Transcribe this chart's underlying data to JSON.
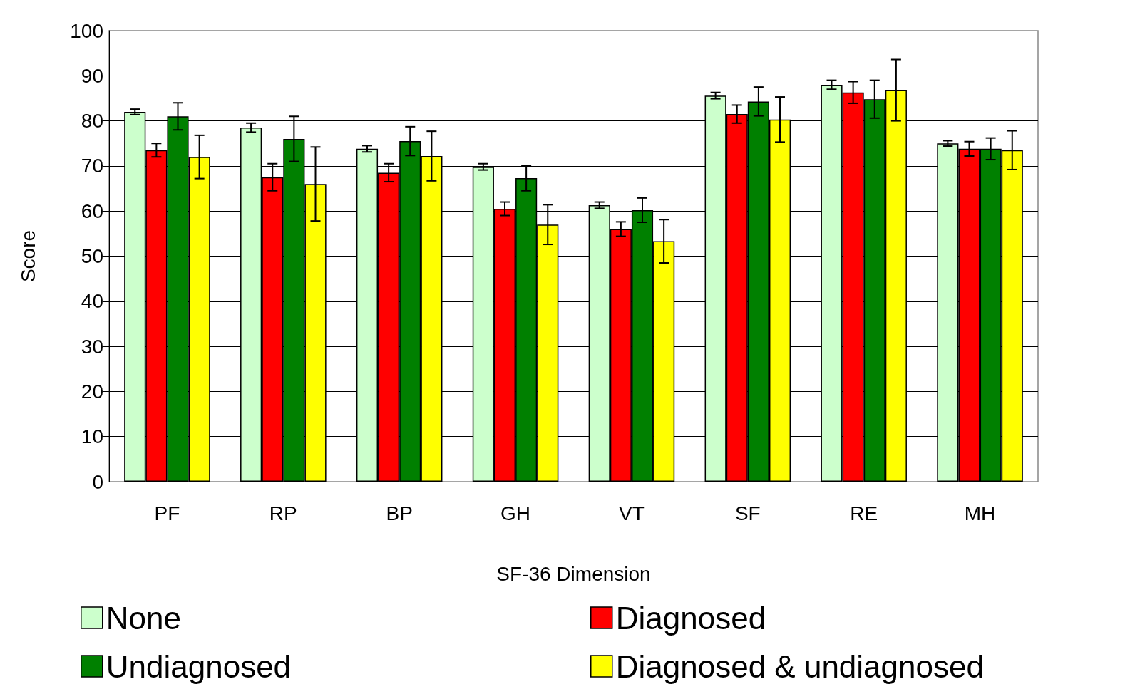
{
  "chart_data": {
    "type": "bar",
    "xlabel": "SF-36 Dimension",
    "ylabel": "Score",
    "categories": [
      "PF",
      "RP",
      "BP",
      "GH",
      "VT",
      "SF",
      "RE",
      "MH"
    ],
    "series": [
      {
        "name": "None",
        "color": "#ccffcc",
        "values": [
          82,
          78.5,
          73.8,
          69.8,
          61.3,
          85.6,
          88,
          75
        ],
        "errors": [
          0.6,
          1,
          0.7,
          0.7,
          0.7,
          0.7,
          1,
          0.6
        ]
      },
      {
        "name": "Diagnosed",
        "color": "#ff0000",
        "values": [
          73.5,
          67.5,
          68.5,
          60.5,
          56,
          81.5,
          86.3,
          73.8
        ],
        "errors": [
          1.5,
          3,
          2,
          1.5,
          1.6,
          2,
          2.4,
          1.6
        ]
      },
      {
        "name": "Undiagnosed",
        "color": "#008000",
        "values": [
          81,
          76,
          75.5,
          67.3,
          60.2,
          84.3,
          84.8,
          73.8
        ],
        "errors": [
          3,
          5,
          3.2,
          2.8,
          2.7,
          3.2,
          4.2,
          2.4
        ]
      },
      {
        "name": "Diagnosed & undiagnosed",
        "color": "#ffff00",
        "values": [
          72,
          66,
          72.2,
          57,
          53.3,
          80.3,
          86.8,
          73.5
        ],
        "errors": [
          4.8,
          8.2,
          5.5,
          4.4,
          4.8,
          5,
          6.8,
          4.3
        ]
      }
    ],
    "ylim": [
      0,
      100
    ],
    "yticks": [
      0,
      10,
      20,
      30,
      40,
      50,
      60,
      70,
      80,
      90,
      100
    ],
    "grid": "y",
    "legend": "bottom"
  }
}
